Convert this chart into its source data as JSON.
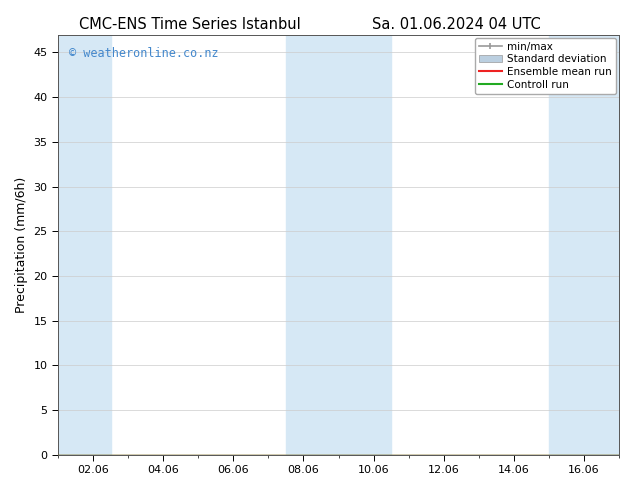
{
  "title_left": "CMC-ENS Time Series Istanbul",
  "title_right": "Sa. 01.06.2024 04 UTC",
  "ylabel": "Precipitation (mm/6h)",
  "background_color": "#ffffff",
  "plot_bg_color": "#ffffff",
  "ylim": [
    0,
    47
  ],
  "yticks": [
    0,
    5,
    10,
    15,
    20,
    25,
    30,
    35,
    40,
    45
  ],
  "xtick_labels": [
    "02.06",
    "04.06",
    "06.06",
    "08.06",
    "10.06",
    "12.06",
    "14.06",
    "16.06"
  ],
  "xtick_positions": [
    2,
    4,
    6,
    8,
    10,
    12,
    14,
    16
  ],
  "xlim": [
    1,
    17
  ],
  "watermark": "© weatheronline.co.nz",
  "watermark_color": "#4488cc",
  "shaded_bands": [
    {
      "x_start": 1.0,
      "x_end": 2.5
    },
    {
      "x_start": 7.5,
      "x_end": 10.5
    },
    {
      "x_start": 15.0,
      "x_end": 17.0
    }
  ],
  "shaded_color": "#d6e8f5",
  "legend_labels": [
    "min/max",
    "Standard deviation",
    "Ensemble mean run",
    "Controll run"
  ],
  "minmax_color": "#999999",
  "std_color": "#bbcfe0",
  "ensemble_color": "#ee2222",
  "control_color": "#22aa22",
  "title_fontsize": 10.5,
  "axis_label_fontsize": 9,
  "tick_fontsize": 8,
  "legend_fontsize": 7.5,
  "watermark_fontsize": 8.5
}
